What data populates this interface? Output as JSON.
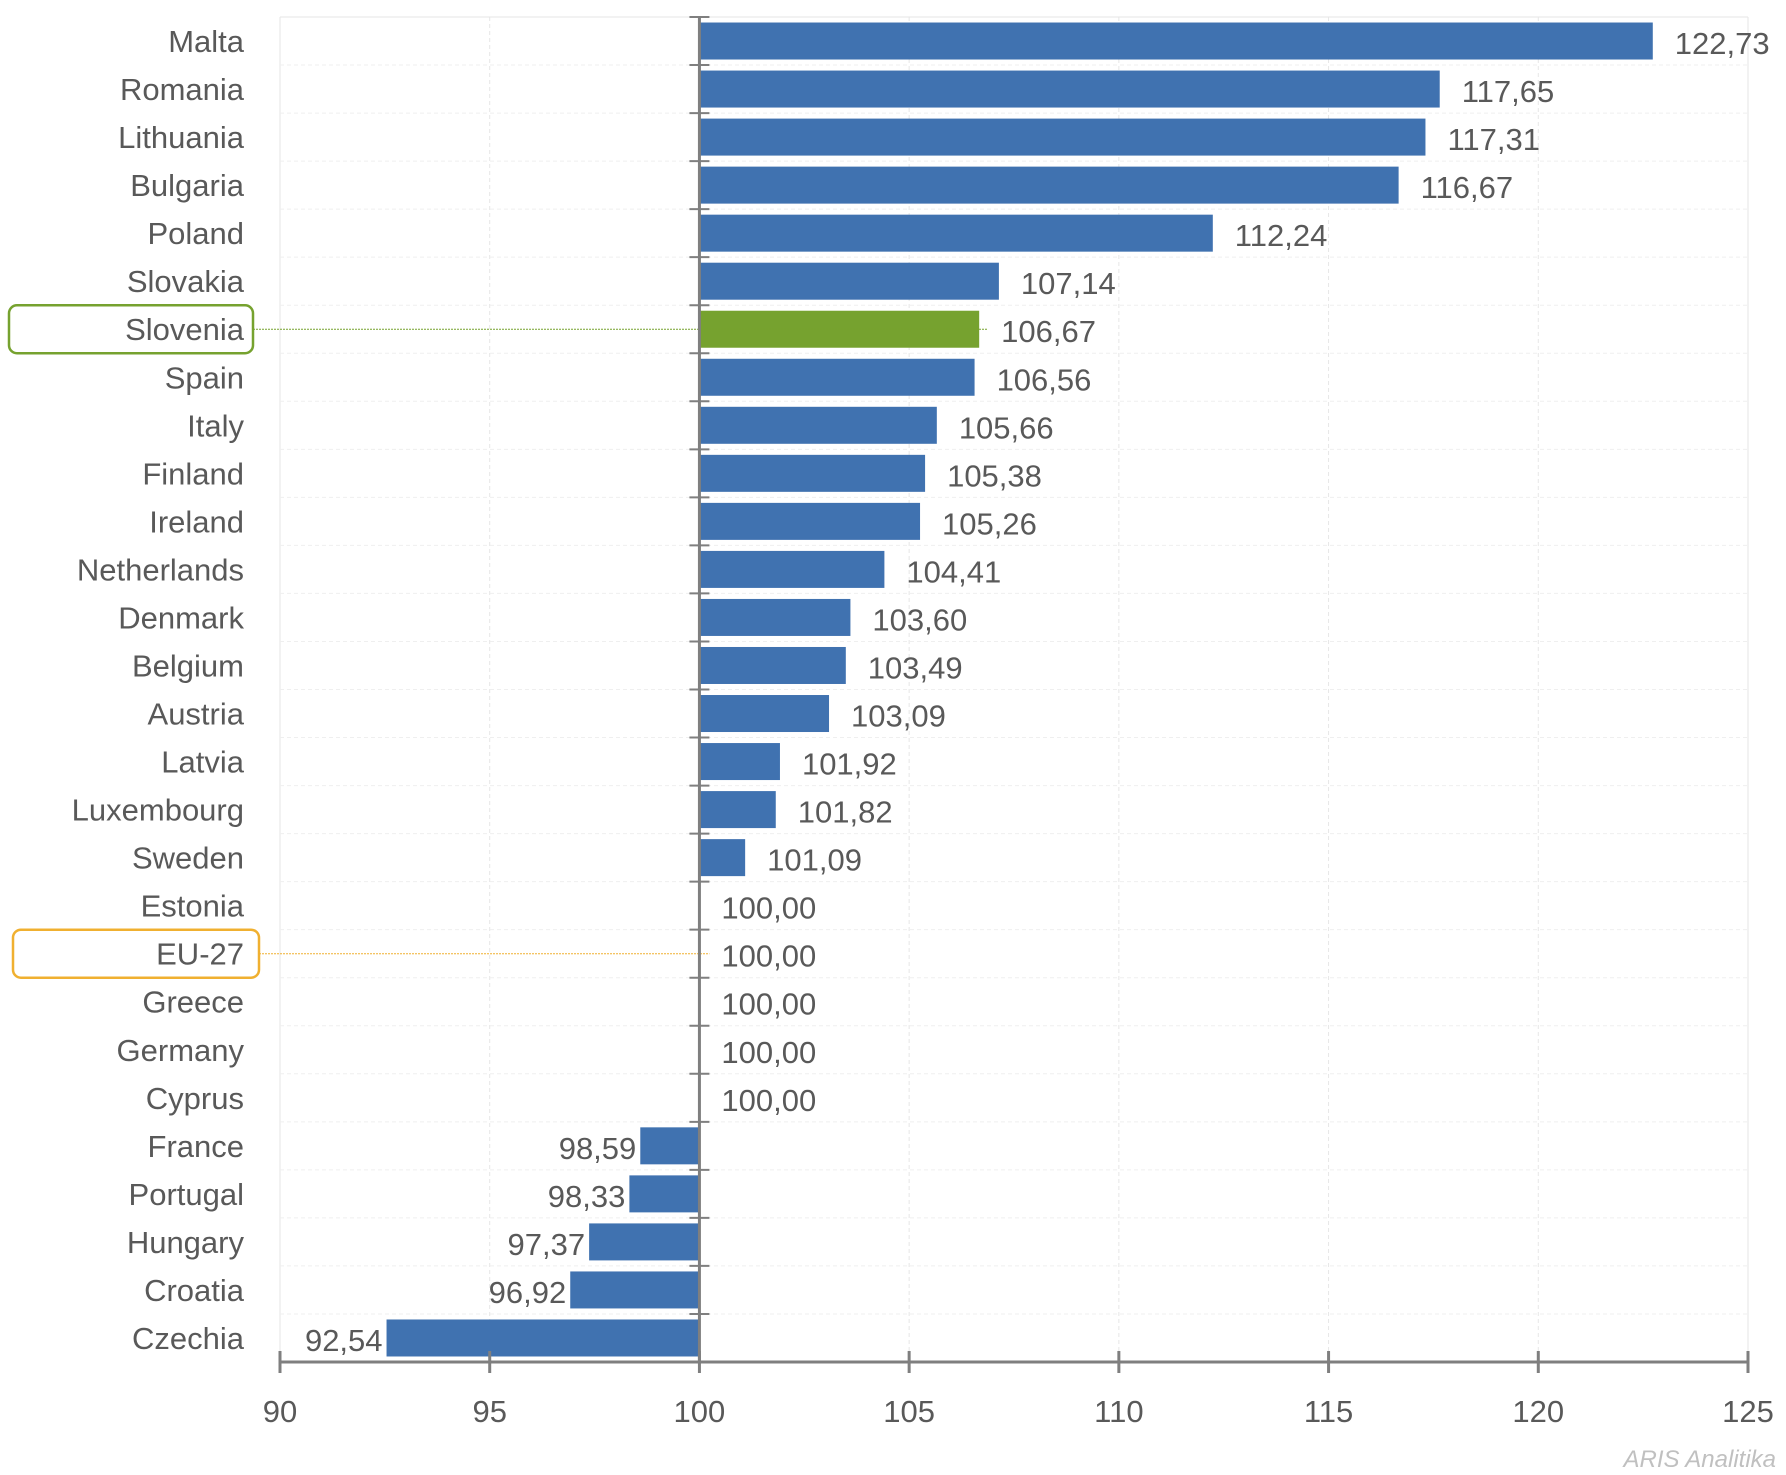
{
  "chart_data": {
    "type": "bar",
    "orientation": "horizontal",
    "categories": [
      "Malta",
      "Romania",
      "Lithuania",
      "Bulgaria",
      "Poland",
      "Slovakia",
      "Slovenia",
      "Spain",
      "Italy",
      "Finland",
      "Ireland",
      "Netherlands",
      "Denmark",
      "Belgium",
      "Austria",
      "Latvia",
      "Luxembourg",
      "Sweden",
      "Estonia",
      "EU-27",
      "Greece",
      "Germany",
      "Cyprus",
      "France",
      "Portugal",
      "Hungary",
      "Croatia",
      "Czechia"
    ],
    "values": [
      122.73,
      117.65,
      117.31,
      116.67,
      112.24,
      107.14,
      106.67,
      106.56,
      105.66,
      105.38,
      105.26,
      104.41,
      103.6,
      103.49,
      103.09,
      101.92,
      101.82,
      101.09,
      100.0,
      100.0,
      100.0,
      100.0,
      100.0,
      98.59,
      98.33,
      97.37,
      96.92,
      92.54
    ],
    "value_labels": [
      "122,73",
      "117,65",
      "117,31",
      "116,67",
      "112,24",
      "107,14",
      "106,67",
      "106,56",
      "105,66",
      "105,38",
      "105,26",
      "104,41",
      "103,60",
      "103,49",
      "103,09",
      "101,92",
      "101,82",
      "101,09",
      "100,00",
      "100,00",
      "100,00",
      "100,00",
      "100,00",
      "98,59",
      "98,33",
      "97,37",
      "96,92",
      "92,54"
    ],
    "baseline": 100,
    "xlim": [
      90,
      125
    ],
    "xticks": [
      90,
      95,
      100,
      105,
      110,
      115,
      120,
      125
    ],
    "highlight": {
      "Slovenia": "#76a22f",
      "EU-27": "#f0b030"
    },
    "bar_color": "#4072b0",
    "grid": true,
    "title": "",
    "xlabel": "",
    "ylabel": ""
  },
  "watermark": "ARIS Analitika"
}
